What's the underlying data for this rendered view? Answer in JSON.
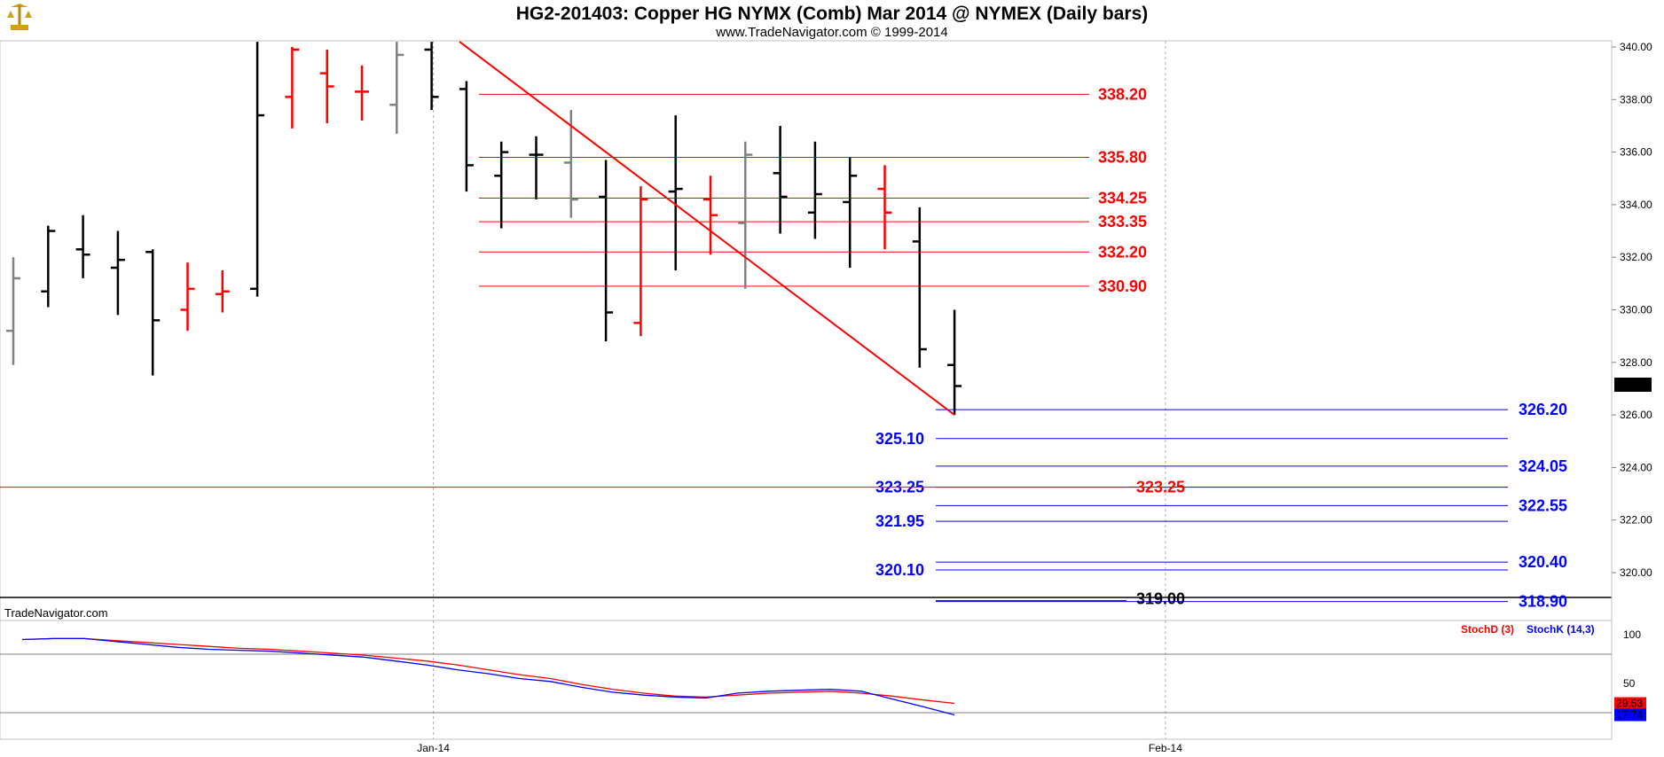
{
  "header": {
    "title": "HG2-201403:  Copper HG NYMX (Comb) Mar 2014 @ NYMEX  (Daily bars)",
    "subtitle": "www.TradeNavigator.com © 1999-2014",
    "logo_icon": "gold-scales-logo-icon"
  },
  "watermark": "TradeNavigator.com",
  "colors": {
    "up": "#ff0000",
    "down": "#000000",
    "neutral": "#808080",
    "fib_red": "#ff0000",
    "fib_blue": "#0000ff",
    "stoch_d": "#ff0000",
    "stoch_k": "#0000ff"
  },
  "chart_data": {
    "type": "ohlc",
    "price_axis": {
      "range": [
        318.5,
        340.2
      ],
      "ticks": [
        "340.00",
        "338.00",
        "336.00",
        "334.00",
        "332.00",
        "330.00",
        "328.00",
        "326.00",
        "324.00",
        "322.00",
        "320.00"
      ],
      "last_price": "327.15",
      "grid": false
    },
    "x_axis": {
      "labels": [
        {
          "text": "Jan-14",
          "bar": 12
        },
        {
          "text": "Feb-14",
          "bar": 33
        }
      ]
    },
    "bars": [
      {
        "o": 329.2,
        "h": 332.0,
        "l": 327.9,
        "c": 331.2,
        "color": "gray"
      },
      {
        "o": 330.7,
        "h": 333.2,
        "l": 330.1,
        "c": 333.0,
        "color": "black"
      },
      {
        "o": 332.3,
        "h": 333.6,
        "l": 331.2,
        "c": 332.1,
        "color": "black"
      },
      {
        "o": 331.6,
        "h": 333.0,
        "l": 329.8,
        "c": 331.9,
        "color": "black"
      },
      {
        "o": 332.2,
        "h": 332.3,
        "l": 327.5,
        "c": 329.6,
        "color": "black"
      },
      {
        "o": 330.0,
        "h": 331.8,
        "l": 329.2,
        "c": 330.8,
        "color": "red"
      },
      {
        "o": 330.6,
        "h": 331.5,
        "l": 329.9,
        "c": 330.7,
        "color": "red"
      },
      {
        "o": 330.8,
        "h": 340.2,
        "l": 330.5,
        "c": 337.4,
        "color": "black"
      },
      {
        "o": 338.1,
        "h": 340.0,
        "l": 336.9,
        "c": 339.9,
        "color": "red"
      },
      {
        "o": 339.0,
        "h": 339.9,
        "l": 337.1,
        "c": 338.5,
        "color": "red"
      },
      {
        "o": 338.3,
        "h": 339.3,
        "l": 337.2,
        "c": 338.3,
        "color": "red"
      },
      {
        "o": 337.8,
        "h": 340.2,
        "l": 336.7,
        "c": 339.7,
        "color": "gray"
      },
      {
        "o": 339.9,
        "h": 340.2,
        "l": 337.6,
        "c": 338.1,
        "color": "black"
      },
      {
        "o": 338.4,
        "h": 338.7,
        "l": 334.5,
        "c": 335.5,
        "color": "black"
      },
      {
        "o": 335.1,
        "h": 336.4,
        "l": 333.1,
        "c": 336.0,
        "color": "black"
      },
      {
        "o": 335.9,
        "h": 336.6,
        "l": 334.2,
        "c": 335.9,
        "color": "black"
      },
      {
        "o": 335.6,
        "h": 337.6,
        "l": 333.5,
        "c": 334.2,
        "color": "gray"
      },
      {
        "o": 334.3,
        "h": 335.7,
        "l": 328.8,
        "c": 329.9,
        "color": "black"
      },
      {
        "o": 329.5,
        "h": 334.7,
        "l": 329.0,
        "c": 334.2,
        "color": "red"
      },
      {
        "o": 334.5,
        "h": 337.4,
        "l": 331.5,
        "c": 334.6,
        "color": "black"
      },
      {
        "o": 334.2,
        "h": 335.1,
        "l": 332.1,
        "c": 333.6,
        "color": "red"
      },
      {
        "o": 333.3,
        "h": 336.4,
        "l": 330.8,
        "c": 335.9,
        "color": "gray"
      },
      {
        "o": 335.2,
        "h": 337.0,
        "l": 332.9,
        "c": 334.3,
        "color": "black"
      },
      {
        "o": 333.7,
        "h": 336.4,
        "l": 332.7,
        "c": 334.4,
        "color": "black"
      },
      {
        "o": 334.1,
        "h": 335.8,
        "l": 331.6,
        "c": 335.1,
        "color": "black"
      },
      {
        "o": 334.6,
        "h": 335.5,
        "l": 332.3,
        "c": 333.7,
        "color": "red"
      },
      {
        "o": 332.6,
        "h": 333.9,
        "l": 327.8,
        "c": 328.5,
        "color": "black"
      },
      {
        "o": 327.9,
        "h": 330.0,
        "l": 326.0,
        "c": 327.1,
        "color": "black"
      }
    ],
    "trendline": {
      "from": {
        "bar": 12.8,
        "price": 340.2
      },
      "to": {
        "bar": 27.0,
        "price": 326.0
      },
      "color": "red"
    },
    "red_levels": [
      {
        "price": 338.2,
        "label": "338.20"
      },
      {
        "price": 335.8,
        "label": "335.80"
      },
      {
        "price": 334.25,
        "label": "334.25"
      },
      {
        "price": 333.35,
        "label": "333.35"
      },
      {
        "price": 332.2,
        "label": "332.20"
      },
      {
        "price": 330.9,
        "label": "330.90"
      }
    ],
    "blue_levels": [
      {
        "price": 326.2,
        "label": "326.20",
        "side": "right"
      },
      {
        "price": 325.1,
        "label": "325.10",
        "side": "left"
      },
      {
        "price": 324.05,
        "label": "324.05",
        "side": "right"
      },
      {
        "price": 323.25,
        "label": "323.25",
        "side": "left"
      },
      {
        "price": 322.55,
        "label": "322.55",
        "side": "right"
      },
      {
        "price": 321.95,
        "label": "321.95",
        "side": "left"
      },
      {
        "price": 320.4,
        "label": "320.40",
        "side": "right"
      },
      {
        "price": 320.1,
        "label": "320.10",
        "side": "left"
      },
      {
        "price": 318.9,
        "label": "318.90",
        "side": "right"
      }
    ],
    "horizontal_line": {
      "price": 323.25,
      "label": "323.25",
      "color": "red"
    },
    "extra_label": {
      "price": 319.0,
      "label": "319.00"
    },
    "indicator": {
      "legend": [
        "StochD (3)",
        "StochK (14,3)"
      ],
      "ticks": [
        "100",
        "50"
      ],
      "levels": [
        80,
        20
      ],
      "last_d": "29.53",
      "last_k": "17.74",
      "stoch_d": [
        95,
        96,
        96,
        94,
        92,
        90,
        88,
        86,
        85,
        83,
        81,
        79,
        76,
        73,
        69,
        64,
        59,
        55,
        49,
        44,
        40,
        37,
        36,
        38,
        40,
        41,
        42,
        40,
        37,
        33,
        29.5
      ],
      "stoch_k": [
        95,
        96,
        96,
        93,
        90,
        87,
        85,
        84,
        83,
        81,
        79,
        77,
        73,
        69,
        64,
        60,
        55,
        52,
        46,
        41,
        38,
        36,
        35,
        40,
        42,
        43,
        44,
        42,
        34,
        26,
        17.7
      ]
    }
  }
}
